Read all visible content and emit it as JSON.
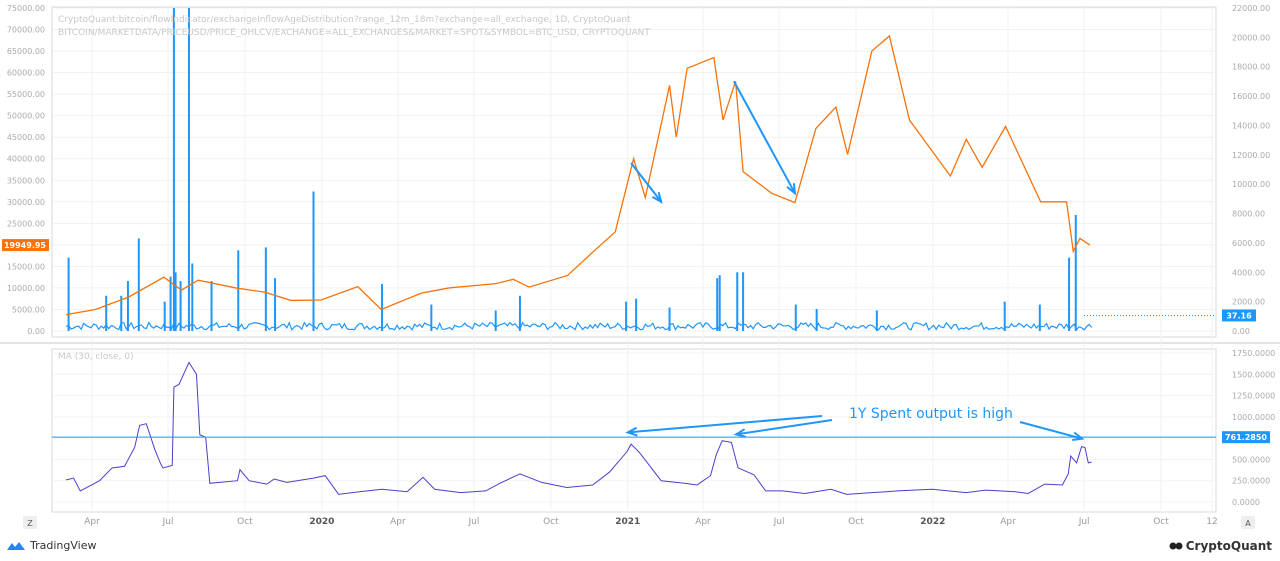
{
  "chart_data": [
    {
      "type": "line",
      "panel": "top",
      "source_lines": [
        "CryptoQuant:bitcoin/flowIndicator/exchangeInflowAgeDistribution?range_12m_18m?exchange=all_exchange, 1D, CryptoQuant",
        "BITCOIN/MARKETDATA/PRICEUSD/PRICE_OHLCV/EXCHANGE=ALL_EXCHANGES&MARKET=SPOT&SYMBOL=BTC_USD, CRYPTOQUANT"
      ],
      "left_axis_ticks": [
        "75000.00",
        "70000.00",
        "65000.00",
        "60000.00",
        "55000.00",
        "50000.00",
        "45000.00",
        "40000.00",
        "35000.00",
        "30000.00",
        "25000.00",
        "20000.00",
        "15000.00",
        "10000.00",
        "5000.00",
        "0.00"
      ],
      "right_axis_ticks": [
        "22000.00",
        "20000.00",
        "18000.00",
        "16000.00",
        "14000.00",
        "12000.00",
        "10000.00",
        "8000.00",
        "6000.00",
        "4000.00",
        "2000.00",
        "0.00"
      ],
      "ylim_left": [
        0,
        75000
      ],
      "ylim_right": [
        0,
        22000
      ],
      "series": [
        {
          "role": "price",
          "color": "#f7720b",
          "axis": "left",
          "points": [
            [
              "2019-03-01",
              3800
            ],
            [
              "2019-04-05",
              5000
            ],
            [
              "2019-05-15",
              7900
            ],
            [
              "2019-06-26",
              12500
            ],
            [
              "2019-07-17",
              9500
            ],
            [
              "2019-08-06",
              11800
            ],
            [
              "2019-09-20",
              10000
            ],
            [
              "2019-10-25",
              9000
            ],
            [
              "2019-11-25",
              7100
            ],
            [
              "2019-12-31",
              7200
            ],
            [
              "2020-02-13",
              10300
            ],
            [
              "2020-03-12",
              5000
            ],
            [
              "2020-04-29",
              8800
            ],
            [
              "2020-06-01",
              10000
            ],
            [
              "2020-07-27",
              11000
            ],
            [
              "2020-08-17",
              12000
            ],
            [
              "2020-09-05",
              10200
            ],
            [
              "2020-10-21",
              12900
            ],
            [
              "2020-11-24",
              19000
            ],
            [
              "2020-12-17",
              23000
            ],
            [
              "2021-01-08",
              40000
            ],
            [
              "2021-01-22",
              31000
            ],
            [
              "2021-02-20",
              57000
            ],
            [
              "2021-02-28",
              45000
            ],
            [
              "2021-03-13",
              61000
            ],
            [
              "2021-04-14",
              63500
            ],
            [
              "2021-04-25",
              49000
            ],
            [
              "2021-05-10",
              58000
            ],
            [
              "2021-05-19",
              37000
            ],
            [
              "2021-06-22",
              32000
            ],
            [
              "2021-07-20",
              29800
            ],
            [
              "2021-08-14",
              47000
            ],
            [
              "2021-09-07",
              52000
            ],
            [
              "2021-09-21",
              41000
            ],
            [
              "2021-10-20",
              65000
            ],
            [
              "2021-11-10",
              68500
            ],
            [
              "2021-12-04",
              49000
            ],
            [
              "2022-01-22",
              36000
            ],
            [
              "2022-02-10",
              44500
            ],
            [
              "2022-03-01",
              38000
            ],
            [
              "2022-03-29",
              47500
            ],
            [
              "2022-05-10",
              30000
            ],
            [
              "2022-06-10",
              30000
            ],
            [
              "2022-06-18",
              18500
            ],
            [
              "2022-06-26",
              21500
            ],
            [
              "2022-07-08",
              19950
            ]
          ]
        },
        {
          "role": "inflow",
          "color": "#1e96fc",
          "axis": "right",
          "spikes": [
            [
              "2019-03-04",
              5000
            ],
            [
              "2019-04-18",
              2400
            ],
            [
              "2019-05-06",
              2400
            ],
            [
              "2019-05-14",
              3400
            ],
            [
              "2019-05-27",
              6300
            ],
            [
              "2019-06-27",
              2000
            ],
            [
              "2019-07-04",
              3700
            ],
            [
              "2019-07-08",
              22000
            ],
            [
              "2019-07-10",
              4000
            ],
            [
              "2019-07-16",
              3400
            ],
            [
              "2019-07-26",
              22000
            ],
            [
              "2019-07-30",
              4600
            ],
            [
              "2019-08-22",
              3400
            ],
            [
              "2019-09-23",
              5500
            ],
            [
              "2019-10-26",
              5700
            ],
            [
              "2019-11-06",
              3600
            ],
            [
              "2019-12-22",
              9500
            ],
            [
              "2020-03-13",
              3200
            ],
            [
              "2020-05-11",
              1800
            ],
            [
              "2020-07-27",
              1400
            ],
            [
              "2020-08-25",
              2400
            ],
            [
              "2020-12-30",
              2000
            ],
            [
              "2021-01-11",
              2200
            ],
            [
              "2021-02-20",
              1600
            ],
            [
              "2021-04-18",
              3600
            ],
            [
              "2021-04-21",
              3800
            ],
            [
              "2021-05-12",
              4000
            ],
            [
              "2021-05-19",
              4000
            ],
            [
              "2021-07-21",
              1800
            ],
            [
              "2021-08-15",
              1500
            ],
            [
              "2021-10-26",
              1400
            ],
            [
              "2022-03-28",
              2000
            ],
            [
              "2022-05-09",
              1800
            ],
            [
              "2022-06-13",
              5000
            ],
            [
              "2022-06-21",
              7900
            ]
          ],
          "last_value": "37.16"
        }
      ],
      "price_label": "19949.95"
    },
    {
      "type": "line",
      "panel": "bottom",
      "indicator_label": "MA (30, close, 0)",
      "axis_ticks": [
        "1750.0000",
        "1500.0000",
        "1250.0000",
        "1000.0000",
        "750.0000",
        "500.0000",
        "250.0000",
        "0.0000"
      ],
      "ylim": [
        -100,
        1800
      ],
      "color": "#4b3fce",
      "horizontal_line": 761.285,
      "horizontal_line_label": "761.2850",
      "points": [
        [
          "2019-03-01",
          260
        ],
        [
          "2019-03-10",
          280
        ],
        [
          "2019-03-18",
          130
        ],
        [
          "2019-04-10",
          250
        ],
        [
          "2019-04-25",
          400
        ],
        [
          "2019-05-10",
          420
        ],
        [
          "2019-05-22",
          640
        ],
        [
          "2019-05-28",
          900
        ],
        [
          "2019-06-05",
          920
        ],
        [
          "2019-06-15",
          620
        ],
        [
          "2019-06-22",
          450
        ],
        [
          "2019-06-25",
          400
        ],
        [
          "2019-07-06",
          430
        ],
        [
          "2019-07-08",
          1350
        ],
        [
          "2019-07-14",
          1380
        ],
        [
          "2019-07-26",
          1640
        ],
        [
          "2019-08-04",
          1500
        ],
        [
          "2019-08-08",
          790
        ],
        [
          "2019-08-15",
          760
        ],
        [
          "2019-08-20",
          220
        ],
        [
          "2019-09-22",
          250
        ],
        [
          "2019-09-25",
          380
        ],
        [
          "2019-10-06",
          250
        ],
        [
          "2019-10-27",
          210
        ],
        [
          "2019-11-05",
          270
        ],
        [
          "2019-11-20",
          230
        ],
        [
          "2019-12-22",
          280
        ],
        [
          "2020-01-05",
          310
        ],
        [
          "2020-01-21",
          90
        ],
        [
          "2020-02-15",
          120
        ],
        [
          "2020-03-13",
          150
        ],
        [
          "2020-04-12",
          120
        ],
        [
          "2020-05-01",
          290
        ],
        [
          "2020-05-15",
          150
        ],
        [
          "2020-06-15",
          110
        ],
        [
          "2020-07-15",
          130
        ],
        [
          "2020-08-01",
          220
        ],
        [
          "2020-08-25",
          330
        ],
        [
          "2020-09-20",
          230
        ],
        [
          "2020-10-20",
          170
        ],
        [
          "2020-11-20",
          200
        ],
        [
          "2020-12-10",
          350
        ],
        [
          "2020-12-31",
          590
        ],
        [
          "2021-01-05",
          680
        ],
        [
          "2021-01-15",
          580
        ],
        [
          "2021-02-10",
          250
        ],
        [
          "2021-03-10",
          220
        ],
        [
          "2021-03-25",
          200
        ],
        [
          "2021-04-10",
          310
        ],
        [
          "2021-04-17",
          560
        ],
        [
          "2021-04-24",
          720
        ],
        [
          "2021-05-05",
          700
        ],
        [
          "2021-05-13",
          400
        ],
        [
          "2021-06-01",
          320
        ],
        [
          "2021-06-15",
          130
        ],
        [
          "2021-07-05",
          130
        ],
        [
          "2021-08-01",
          100
        ],
        [
          "2021-09-01",
          150
        ],
        [
          "2021-09-20",
          90
        ],
        [
          "2021-10-20",
          110
        ],
        [
          "2021-11-20",
          130
        ],
        [
          "2021-12-31",
          150
        ],
        [
          "2022-02-10",
          110
        ],
        [
          "2022-03-05",
          140
        ],
        [
          "2022-04-10",
          120
        ],
        [
          "2022-04-25",
          100
        ],
        [
          "2022-05-15",
          210
        ],
        [
          "2022-06-05",
          200
        ],
        [
          "2022-06-12",
          330
        ],
        [
          "2022-06-15",
          540
        ],
        [
          "2022-06-22",
          460
        ],
        [
          "2022-06-28",
          650
        ],
        [
          "2022-07-02",
          640
        ],
        [
          "2022-07-06",
          460
        ],
        [
          "2022-07-10",
          470
        ]
      ]
    }
  ],
  "x_axis_ticks": [
    {
      "label": "Apr",
      "date": "2019-04-01",
      "bold": false
    },
    {
      "label": "Jul",
      "date": "2019-07-01",
      "bold": false
    },
    {
      "label": "Oct",
      "date": "2019-10-01",
      "bold": false
    },
    {
      "label": "2020",
      "date": "2020-01-01",
      "bold": true
    },
    {
      "label": "Apr",
      "date": "2020-04-01",
      "bold": false
    },
    {
      "label": "Jul",
      "date": "2020-07-01",
      "bold": false
    },
    {
      "label": "Oct",
      "date": "2020-10-01",
      "bold": false
    },
    {
      "label": "2021",
      "date": "2021-01-01",
      "bold": true
    },
    {
      "label": "Apr",
      "date": "2021-04-01",
      "bold": false
    },
    {
      "label": "Jul",
      "date": "2021-07-01",
      "bold": false
    },
    {
      "label": "Oct",
      "date": "2021-10-01",
      "bold": false
    },
    {
      "label": "2022",
      "date": "2022-01-01",
      "bold": true
    },
    {
      "label": "Apr",
      "date": "2022-04-01",
      "bold": false
    },
    {
      "label": "Jul",
      "date": "2022-07-01",
      "bold": false
    },
    {
      "label": "Oct",
      "date": "2022-10-01",
      "bold": false
    },
    {
      "label": "12",
      "date": "2022-12-01",
      "bold": false
    }
  ],
  "annotation": {
    "text": "1Y Spent output is high",
    "color": "#1e96fc",
    "arrow_targets": [
      [
        "2021-01-01",
        700
      ],
      [
        "2021-05-01",
        700
      ],
      [
        "2022-06-25",
        650
      ]
    ],
    "price_arrows": [
      [
        [
          "2021-01-05",
          39000
        ],
        [
          "2021-02-10",
          30000
        ]
      ],
      [
        [
          "2021-05-08",
          58000
        ],
        [
          "2021-07-20",
          32000
        ]
      ]
    ]
  },
  "footer": {
    "left_logo_text": "TradingView",
    "right_logo_text": "CryptoQuant"
  },
  "buttons": {
    "zoom_label": "Z",
    "auto_label": "A"
  }
}
